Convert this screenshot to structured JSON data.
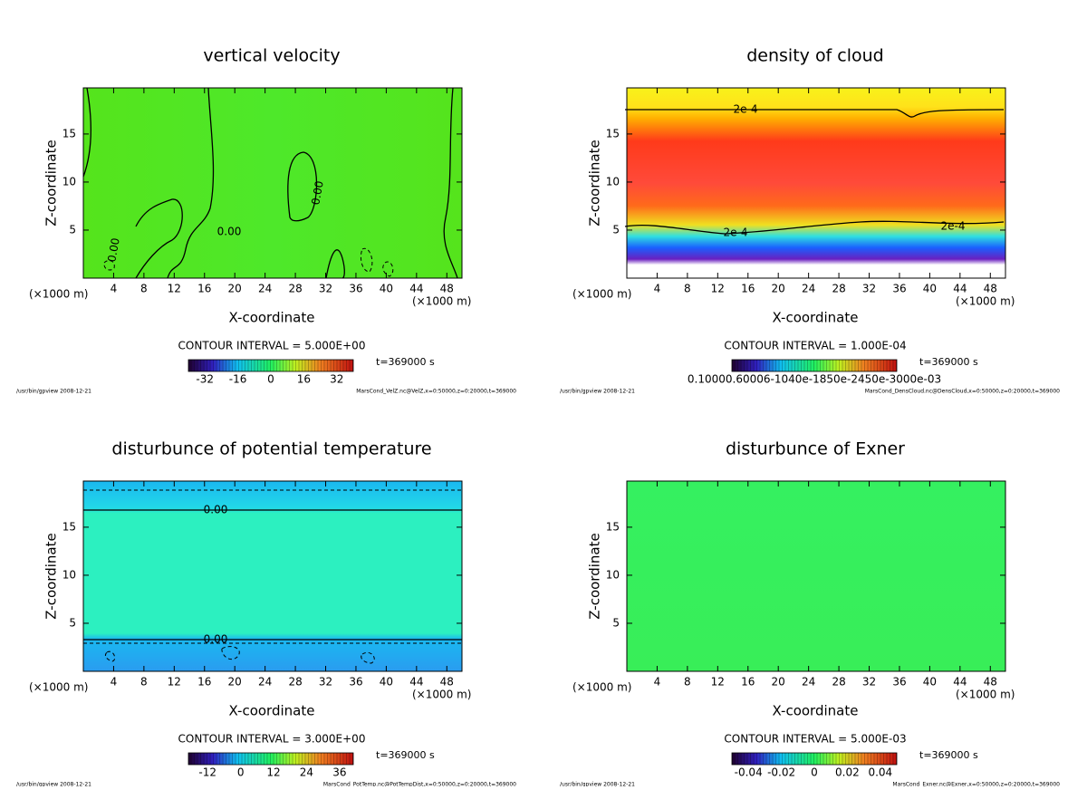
{
  "chart_data": [
    {
      "type": "contour",
      "title": "vertical velocity",
      "x_label": "X-coordinate",
      "y_label": "Z-coordinate",
      "x_unit_left": "(×1000 m)",
      "x_unit_right": "(×1000 m)",
      "xlim": [
        0,
        50
      ],
      "xticks": [
        4,
        8,
        12,
        16,
        20,
        24,
        28,
        32,
        36,
        40,
        44,
        48
      ],
      "ylim": [
        0,
        19.8
      ],
      "yticks": [
        5,
        10,
        15
      ],
      "contour_interval": "CONTOUR INTERVAL = 5.000E+00",
      "time": "t=369000 s",
      "cbar_lim": [
        -40,
        40
      ],
      "cbar_ticks": [
        -32,
        -16,
        0,
        16,
        32
      ],
      "contour_labels": [
        "0.00",
        "0.00",
        "0.00"
      ],
      "footer_left": "/usr/bin/gpview  2008-12-21",
      "footer_right": "MarsCond_VelZ.nc@VelZ,x=0:50000,z=0:20000,t=369000"
    },
    {
      "type": "contour",
      "title": "density of cloud",
      "x_label": "X-coordinate",
      "y_label": "Z-coordinate",
      "x_unit_left": "(×1000 m)",
      "x_unit_right": "(×1000 m)",
      "xlim": [
        0,
        50
      ],
      "xticks": [
        4,
        8,
        12,
        16,
        20,
        24,
        28,
        32,
        36,
        40,
        44,
        48
      ],
      "ylim": [
        0,
        19.8
      ],
      "yticks": [
        5,
        10,
        15
      ],
      "contour_interval": "CONTOUR INTERVAL = 1.000E-04",
      "time": "t=369000 s",
      "cbar_label": "0.10000.60006-1040e-1850e-2450e-3000e-03",
      "contour_labels": [
        "2e-4",
        "2e-4",
        "2e-4"
      ],
      "footer_left": "/usr/bin/gpview  2008-12-21",
      "footer_right": "MarsCond_DensCloud.nc@DensCloud,x=0:50000,z=0:20000,t=369000"
    },
    {
      "type": "contour",
      "title": "disturbunce of potential temperature",
      "x_label": "X-coordinate",
      "y_label": "Z-coordinate",
      "x_unit_left": "(×1000 m)",
      "x_unit_right": "(×1000 m)",
      "xlim": [
        0,
        50
      ],
      "xticks": [
        4,
        8,
        12,
        16,
        20,
        24,
        28,
        32,
        36,
        40,
        44,
        48
      ],
      "ylim": [
        0,
        19.8
      ],
      "yticks": [
        5,
        10,
        15
      ],
      "contour_interval": "CONTOUR INTERVAL = 3.000E+00",
      "time": "t=369000 s",
      "cbar_lim": [
        -19,
        41
      ],
      "cbar_ticks": [
        -12,
        0,
        12,
        24,
        36
      ],
      "contour_labels": [
        "0.00",
        "0.00"
      ],
      "footer_left": "/usr/bin/gpview  2008-12-21",
      "footer_right": "MarsCond_PotTemp.nc@PotTempDist,x=0:50000,z=0:20000,t=369000"
    },
    {
      "type": "contour",
      "title": "disturbunce of Exner",
      "x_label": "X-coordinate",
      "y_label": "Z-coordinate",
      "x_unit_left": "(×1000 m)",
      "x_unit_right": "(×1000 m)",
      "xlim": [
        0,
        50
      ],
      "xticks": [
        4,
        8,
        12,
        16,
        20,
        24,
        28,
        32,
        36,
        40,
        44,
        48
      ],
      "ylim": [
        0,
        19.8
      ],
      "yticks": [
        5,
        10,
        15
      ],
      "contour_interval": "CONTOUR INTERVAL = 5.000E-03",
      "time": "t=369000 s",
      "cbar_lim": [
        -0.05,
        0.05
      ],
      "cbar_ticks": [
        -0.04,
        -0.02,
        0,
        0.02,
        0.04
      ],
      "footer_left": "/usr/bin/gpview  2008-12-21",
      "footer_right": "MarsCond_Exner.nc@Exner,x=0:50000,z=0:20000,t=369000"
    }
  ]
}
